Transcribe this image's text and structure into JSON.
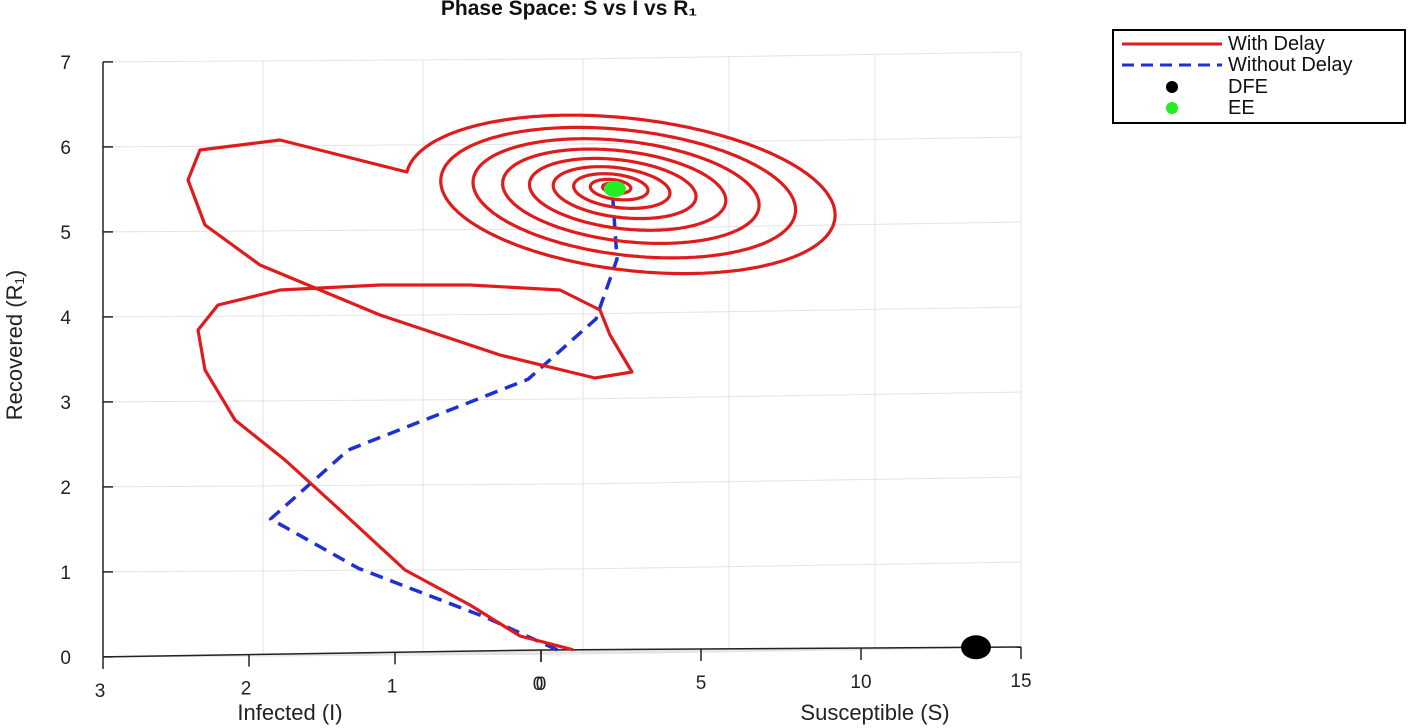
{
  "chart_data": {
    "type": "line",
    "projection": "3d",
    "title": "Phase Space: S vs I vs R₁",
    "xlabel": "Susceptible (S)",
    "ylabel": "Infected (I)",
    "zlabel": "Recovered (R₁)",
    "xlim": [
      0,
      15
    ],
    "ylim": [
      0,
      3
    ],
    "zlim": [
      0,
      7
    ],
    "xticks": [
      "0",
      "5",
      "10",
      "15"
    ],
    "yticks": [
      "0",
      "1",
      "2",
      "3"
    ],
    "zticks": [
      "0",
      "1",
      "2",
      "3",
      "4",
      "5",
      "6",
      "7"
    ],
    "grid": true,
    "legend_position": "top-right, outside",
    "series": [
      {
        "name": "With Delay",
        "style": "solid",
        "color": "#e01b1b",
        "description_points": "trajectory from origin region spiralling into EE"
      },
      {
        "name": "Without Delay",
        "style": "dashed",
        "color": "#1f2fd6",
        "x": [
          0.6,
          1.0,
          1.6,
          2.5,
          3.1,
          3.7,
          4.0,
          4.2,
          4.3
        ],
        "y": [
          0.02,
          0.6,
          1.6,
          2.4,
          2.0,
          0.9,
          0.5,
          0.4,
          0.45
        ],
        "z": [
          0.0,
          0.4,
          1.0,
          1.6,
          2.4,
          3.2,
          3.9,
          4.6,
          5.3
        ]
      },
      {
        "name": "DFE",
        "style": "marker",
        "color": "#000000",
        "x": [
          13.5
        ],
        "y": [
          0
        ],
        "z": [
          0
        ]
      },
      {
        "name": "EE",
        "style": "marker",
        "color": "#22ee22",
        "x": [
          4.3
        ],
        "y": [
          0.45
        ],
        "z": [
          5.45
        ]
      }
    ]
  }
}
